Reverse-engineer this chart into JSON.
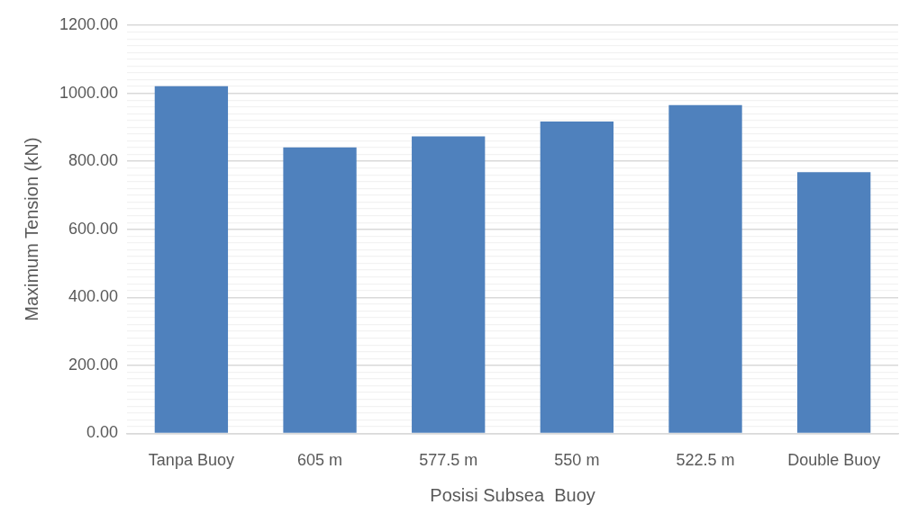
{
  "chart_data": {
    "type": "bar",
    "xlabel": "Posisi Subsea  Buoy",
    "ylabel": "Maximum Tension (kN)",
    "categories": [
      "Tanpa Buoy",
      "605 m",
      "577.5 m",
      "550 m",
      "522.5 m",
      "Double Buoy"
    ],
    "values": [
      1021,
      841,
      873,
      917,
      965,
      768
    ],
    "color": "#4f81bd",
    "ylim": [
      0,
      1200
    ],
    "yticks": [
      {
        "value": 0,
        "label": "0.00"
      },
      {
        "value": 20,
        "label": null
      },
      {
        "value": 40,
        "label": null
      },
      {
        "value": 60,
        "label": null
      },
      {
        "value": 80,
        "label": null
      },
      {
        "value": 100,
        "label": null
      },
      {
        "value": 120,
        "label": null
      },
      {
        "value": 140,
        "label": null
      },
      {
        "value": 160,
        "label": null
      },
      {
        "value": 180,
        "label": null
      },
      {
        "value": 200,
        "label": "200.00"
      },
      {
        "value": 220,
        "label": null
      },
      {
        "value": 240,
        "label": null
      },
      {
        "value": 260,
        "label": null
      },
      {
        "value": 280,
        "label": null
      },
      {
        "value": 300,
        "label": null
      },
      {
        "value": 320,
        "label": null
      },
      {
        "value": 340,
        "label": null
      },
      {
        "value": 360,
        "label": null
      },
      {
        "value": 380,
        "label": null
      },
      {
        "value": 400,
        "label": "400.00"
      },
      {
        "value": 420,
        "label": null
      },
      {
        "value": 440,
        "label": null
      },
      {
        "value": 460,
        "label": null
      },
      {
        "value": 480,
        "label": null
      },
      {
        "value": 500,
        "label": null
      },
      {
        "value": 520,
        "label": null
      },
      {
        "value": 540,
        "label": null
      },
      {
        "value": 560,
        "label": null
      },
      {
        "value": 580,
        "label": null
      },
      {
        "value": 600,
        "label": "600.00"
      },
      {
        "value": 620,
        "label": null
      },
      {
        "value": 640,
        "label": null
      },
      {
        "value": 660,
        "label": null
      },
      {
        "value": 680,
        "label": null
      },
      {
        "value": 700,
        "label": null
      },
      {
        "value": 720,
        "label": null
      },
      {
        "value": 740,
        "label": null
      },
      {
        "value": 760,
        "label": null
      },
      {
        "value": 780,
        "label": null
      },
      {
        "value": 800,
        "label": "800.00"
      },
      {
        "value": 820,
        "label": null
      },
      {
        "value": 840,
        "label": null
      },
      {
        "value": 860,
        "label": null
      },
      {
        "value": 880,
        "label": null
      },
      {
        "value": 900,
        "label": null
      },
      {
        "value": 920,
        "label": null
      },
      {
        "value": 940,
        "label": null
      },
      {
        "value": 960,
        "label": null
      },
      {
        "value": 980,
        "label": null
      },
      {
        "value": 1000,
        "label": "1000.00"
      },
      {
        "value": 1020,
        "label": null
      },
      {
        "value": 1040,
        "label": null
      },
      {
        "value": 1060,
        "label": null
      },
      {
        "value": 1080,
        "label": null
      },
      {
        "value": 1100,
        "label": null
      },
      {
        "value": 1120,
        "label": null
      },
      {
        "value": 1140,
        "label": null
      },
      {
        "value": 1160,
        "label": null
      },
      {
        "value": 1180,
        "label": null
      },
      {
        "value": 1200,
        "label": "1200.00"
      }
    ],
    "grid": "y",
    "legend": false
  }
}
